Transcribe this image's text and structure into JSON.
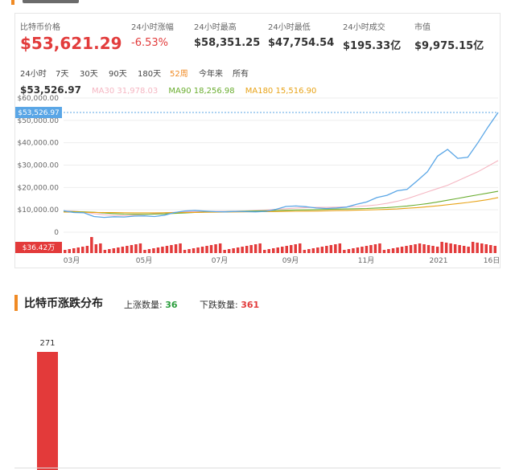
{
  "stats": {
    "price": {
      "label": "比特币价格",
      "value": "$53,621.29"
    },
    "change24h": {
      "label": "24小时涨幅",
      "value": "-6.53%"
    },
    "high24h": {
      "label": "24小时最高",
      "value": "$58,351.25"
    },
    "low24h": {
      "label": "24小时最低",
      "value": "$47,754.54"
    },
    "volume24h": {
      "label": "24小时成交",
      "value": "$195.33亿"
    },
    "marketcap": {
      "label": "市值",
      "value": "$9,975.15亿"
    }
  },
  "tabs": [
    "24小时",
    "7天",
    "30天",
    "90天",
    "180天",
    "52周",
    "今年来",
    "所有"
  ],
  "active_tab": "52周",
  "current_price": "$53,526.97",
  "moving_averages": [
    {
      "label": "MA30 31,978.03",
      "color": "#f5b6c2"
    },
    {
      "label": "MA90 18,256.98",
      "color": "#6aad2f"
    },
    {
      "label": "MA180 15,516.90",
      "color": "#e8a317"
    }
  ],
  "colors": {
    "price_line": "#5aa6e6",
    "ma30": "#f5b6c2",
    "ma90": "#6aad2f",
    "ma180": "#e8a317",
    "volume": "#e33a3a",
    "accent": "#f08a24"
  },
  "chart_data": [
    {
      "type": "line",
      "y_ticks": [
        "$60,000.00",
        "$50,000.00",
        "$40,000.00",
        "$30,000.00",
        "$20,000.00",
        "$10,000.00",
        "0"
      ],
      "ylim": [
        0,
        60000
      ],
      "x_ticks": [
        "03月",
        "05月",
        "07月",
        "09月",
        "11月",
        "2021",
        "16日"
      ],
      "current_marker": {
        "label": "$53,526.97",
        "value": 53526.97
      },
      "series": [
        {
          "name": "MA30",
          "color": "#f5b6c2",
          "values": [
            9500,
            9400,
            9000,
            8300,
            7800,
            7500,
            7400,
            7600,
            7900,
            8300,
            8700,
            8900,
            9100,
            9200,
            9300,
            9300,
            9300,
            9400,
            9500,
            9700,
            9900,
            10200,
            10500,
            10800,
            11000,
            11100,
            11100,
            11200,
            11300,
            11500,
            11800,
            12200,
            12900,
            13800,
            15000,
            16500,
            18000,
            19500,
            21000,
            23000,
            25000,
            27000,
            29500,
            32000
          ]
        },
        {
          "name": "MA90",
          "color": "#6aad2f",
          "values": [
            9300,
            9200,
            9100,
            8900,
            8600,
            8300,
            8100,
            8000,
            8000,
            8100,
            8200,
            8400,
            8600,
            8800,
            9000,
            9100,
            9200,
            9300,
            9400,
            9500,
            9600,
            9700,
            9800,
            9900,
            10000,
            10100,
            10200,
            10300,
            10400,
            10500,
            10600,
            10800,
            11000,
            11300,
            11700,
            12200,
            12800,
            13500,
            14300,
            15100,
            15900,
            16700,
            17500,
            18300
          ]
        },
        {
          "name": "MA180",
          "color": "#e8a317",
          "values": [
            9000,
            8950,
            8900,
            8850,
            8800,
            8750,
            8700,
            8650,
            8650,
            8650,
            8700,
            8750,
            8800,
            8850,
            8900,
            8950,
            9000,
            9050,
            9100,
            9150,
            9200,
            9250,
            9300,
            9350,
            9400,
            9450,
            9550,
            9650,
            9750,
            9850,
            9950,
            10050,
            10200,
            10400,
            10700,
            11000,
            11400,
            11800,
            12300,
            12800,
            13300,
            13900,
            14600,
            15500
          ]
        },
        {
          "name": "price",
          "color": "#5aa6e6",
          "values": [
            9600,
            8800,
            8700,
            7000,
            6600,
            6900,
            6800,
            7200,
            7300,
            7000,
            7600,
            8800,
            9500,
            9700,
            9400,
            9200,
            9100,
            9300,
            9200,
            9100,
            9300,
            10200,
            11500,
            11700,
            11400,
            10800,
            10600,
            10800,
            11200,
            12500,
            13500,
            15500,
            16500,
            18500,
            19200,
            23000,
            27000,
            34000,
            37000,
            33000,
            33500,
            40000,
            47000,
            53527
          ]
        }
      ],
      "volume_label": "$36.42万"
    },
    {
      "type": "bar",
      "title": "比特币涨跌分布",
      "categories": [
        ""
      ],
      "values": [
        271
      ],
      "data_labels": [
        "271"
      ]
    }
  ],
  "distribution": {
    "title": "比特币涨跌分布",
    "up_label": "上涨数量:",
    "up_count": "36",
    "down_label": "下跌数量:",
    "down_count": "361",
    "bar_value_label": "271"
  }
}
